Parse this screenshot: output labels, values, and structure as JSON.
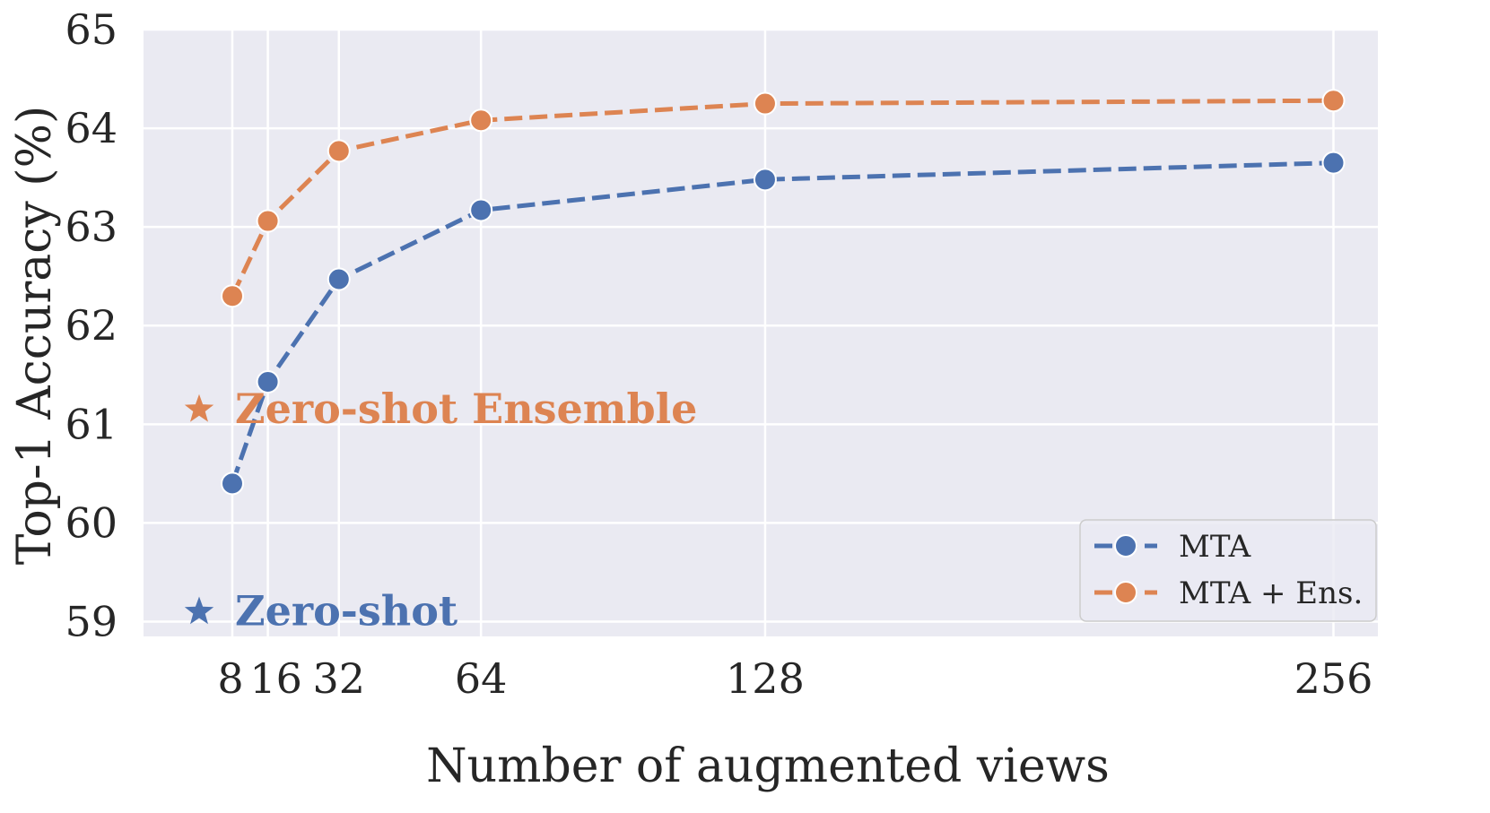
{
  "chart_data": {
    "type": "line",
    "xlabel": "Number of augmented views",
    "ylabel": "Top-1 Accuracy (%)",
    "x": [
      8,
      16,
      32,
      64,
      128,
      256
    ],
    "xtick_labels": [
      "8",
      "16",
      "32",
      "64",
      "128",
      "256"
    ],
    "xlim": [
      -12,
      266
    ],
    "ylim": [
      58.85,
      65.0
    ],
    "yticks": [
      59,
      60,
      61,
      62,
      63,
      64,
      65
    ],
    "ytick_labels": [
      "59",
      "60",
      "61",
      "62",
      "63",
      "64",
      "65"
    ],
    "grid": true,
    "background": "#EAEAF2",
    "legend_position": "lower right",
    "series": [
      {
        "name": "MTA",
        "color": "#4C72B0",
        "style": "dashed",
        "marker": "circle",
        "values": [
          60.4,
          61.43,
          62.47,
          63.17,
          63.48,
          63.65
        ]
      },
      {
        "name": "MTA + Ens.",
        "color": "#DD8452",
        "style": "dashed",
        "marker": "circle",
        "values": [
          62.3,
          63.06,
          63.77,
          64.08,
          64.25,
          64.28
        ]
      }
    ],
    "annotations": [
      {
        "text": "Zero-shot Ensemble",
        "marker": "star",
        "color": "#DD8452",
        "y": 61.15
      },
      {
        "text": "Zero-shot",
        "marker": "star",
        "color": "#4C72B0",
        "y": 59.1
      }
    ]
  }
}
